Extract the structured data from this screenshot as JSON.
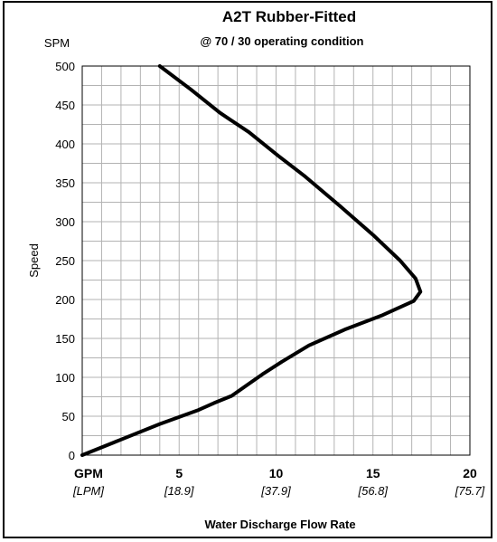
{
  "chart_data": {
    "type": "line",
    "title": "A2T Rubber-Fitted",
    "subtitle": "@ 70 / 30 operating condition",
    "ylabel": "Speed",
    "yunit": "SPM",
    "xlabel": "Water Discharge Flow Rate",
    "xunit_primary": "GPM",
    "xunit_secondary": "[LPM]",
    "xlim": [
      0,
      20
    ],
    "ylim": [
      0,
      500
    ],
    "grid": true,
    "yticks": [
      "0",
      "50",
      "100",
      "150",
      "200",
      "250",
      "300",
      "350",
      "400",
      "450",
      "500"
    ],
    "xticks": [
      {
        "value": 5,
        "primary": "5",
        "secondary": "[18.9]"
      },
      {
        "value": 10,
        "primary": "10",
        "secondary": "[37.9]"
      },
      {
        "value": 15,
        "primary": "15",
        "secondary": "[56.8]"
      },
      {
        "value": 20,
        "primary": "20",
        "secondary": "[75.7]"
      }
    ],
    "series": [
      {
        "color": "#000000",
        "points": [
          {
            "x": 0.0,
            "y": 0
          },
          {
            "x": 2.0,
            "y": 20
          },
          {
            "x": 4.0,
            "y": 40
          },
          {
            "x": 6.0,
            "y": 58
          },
          {
            "x": 6.8,
            "y": 67
          },
          {
            "x": 7.7,
            "y": 76
          },
          {
            "x": 8.5,
            "y": 90
          },
          {
            "x": 9.3,
            "y": 104
          },
          {
            "x": 10.3,
            "y": 120
          },
          {
            "x": 11.7,
            "y": 141
          },
          {
            "x": 13.6,
            "y": 162
          },
          {
            "x": 15.5,
            "y": 180
          },
          {
            "x": 17.1,
            "y": 198
          },
          {
            "x": 17.45,
            "y": 210
          },
          {
            "x": 17.2,
            "y": 227
          },
          {
            "x": 16.4,
            "y": 250
          },
          {
            "x": 15.0,
            "y": 283
          },
          {
            "x": 13.3,
            "y": 320
          },
          {
            "x": 11.5,
            "y": 358
          },
          {
            "x": 10.1,
            "y": 385
          },
          {
            "x": 8.6,
            "y": 415
          },
          {
            "x": 7.1,
            "y": 440
          },
          {
            "x": 5.6,
            "y": 470
          },
          {
            "x": 4.0,
            "y": 500
          }
        ]
      }
    ]
  }
}
